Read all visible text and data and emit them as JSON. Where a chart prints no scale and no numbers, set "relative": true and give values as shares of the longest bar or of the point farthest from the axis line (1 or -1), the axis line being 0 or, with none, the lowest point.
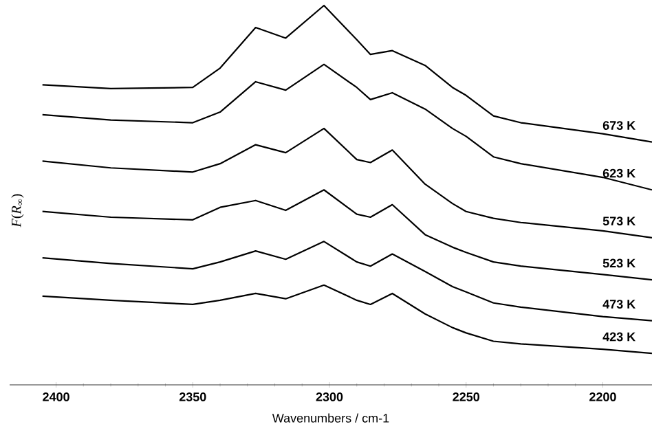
{
  "chart_data": {
    "type": "line",
    "relative": true,
    "xlabel": "Wavenumbers / cm-1",
    "ylabel": "*F*(*R*$_{∞}$)",
    "xlim": [
      2417,
      2182
    ],
    "xticks": [
      2400,
      2350,
      2300,
      2250,
      2200
    ],
    "grid": false,
    "legend": false,
    "marker": "none",
    "line_style": "solid",
    "x": [
      2405,
      2380,
      2350,
      2340,
      2327,
      2316,
      2302,
      2290,
      2285,
      2277,
      2265,
      2255,
      2250,
      2240,
      2230,
      2200,
      2182
    ],
    "series": [
      {
        "name": "673 K",
        "color": "#000000",
        "values": [
          0.791,
          0.781,
          0.784,
          0.835,
          0.942,
          0.914,
          1.0,
          0.91,
          0.871,
          0.881,
          0.842,
          0.784,
          0.763,
          0.709,
          0.691,
          0.662,
          0.64
        ]
      },
      {
        "name": "623 K",
        "color": "#000000",
        "values": [
          0.712,
          0.698,
          0.691,
          0.719,
          0.799,
          0.777,
          0.845,
          0.784,
          0.752,
          0.77,
          0.727,
          0.676,
          0.655,
          0.601,
          0.583,
          0.547,
          0.514
        ]
      },
      {
        "name": "573 K",
        "color": "#000000",
        "values": [
          0.59,
          0.572,
          0.561,
          0.583,
          0.633,
          0.612,
          0.676,
          0.594,
          0.586,
          0.619,
          0.529,
          0.478,
          0.457,
          0.439,
          0.428,
          0.406,
          0.388
        ]
      },
      {
        "name": "523 K",
        "color": "#000000",
        "values": [
          0.457,
          0.442,
          0.435,
          0.468,
          0.486,
          0.46,
          0.514,
          0.45,
          0.442,
          0.475,
          0.396,
          0.363,
          0.349,
          0.324,
          0.313,
          0.291,
          0.277
        ]
      },
      {
        "name": "473 K",
        "color": "#000000",
        "values": [
          0.335,
          0.32,
          0.306,
          0.324,
          0.353,
          0.331,
          0.378,
          0.324,
          0.313,
          0.345,
          0.299,
          0.259,
          0.245,
          0.216,
          0.205,
          0.18,
          0.169
        ]
      },
      {
        "name": "423 K",
        "color": "#000000",
        "values": [
          0.234,
          0.223,
          0.212,
          0.223,
          0.241,
          0.227,
          0.263,
          0.223,
          0.212,
          0.241,
          0.187,
          0.151,
          0.137,
          0.115,
          0.108,
          0.094,
          0.083
        ]
      }
    ]
  }
}
